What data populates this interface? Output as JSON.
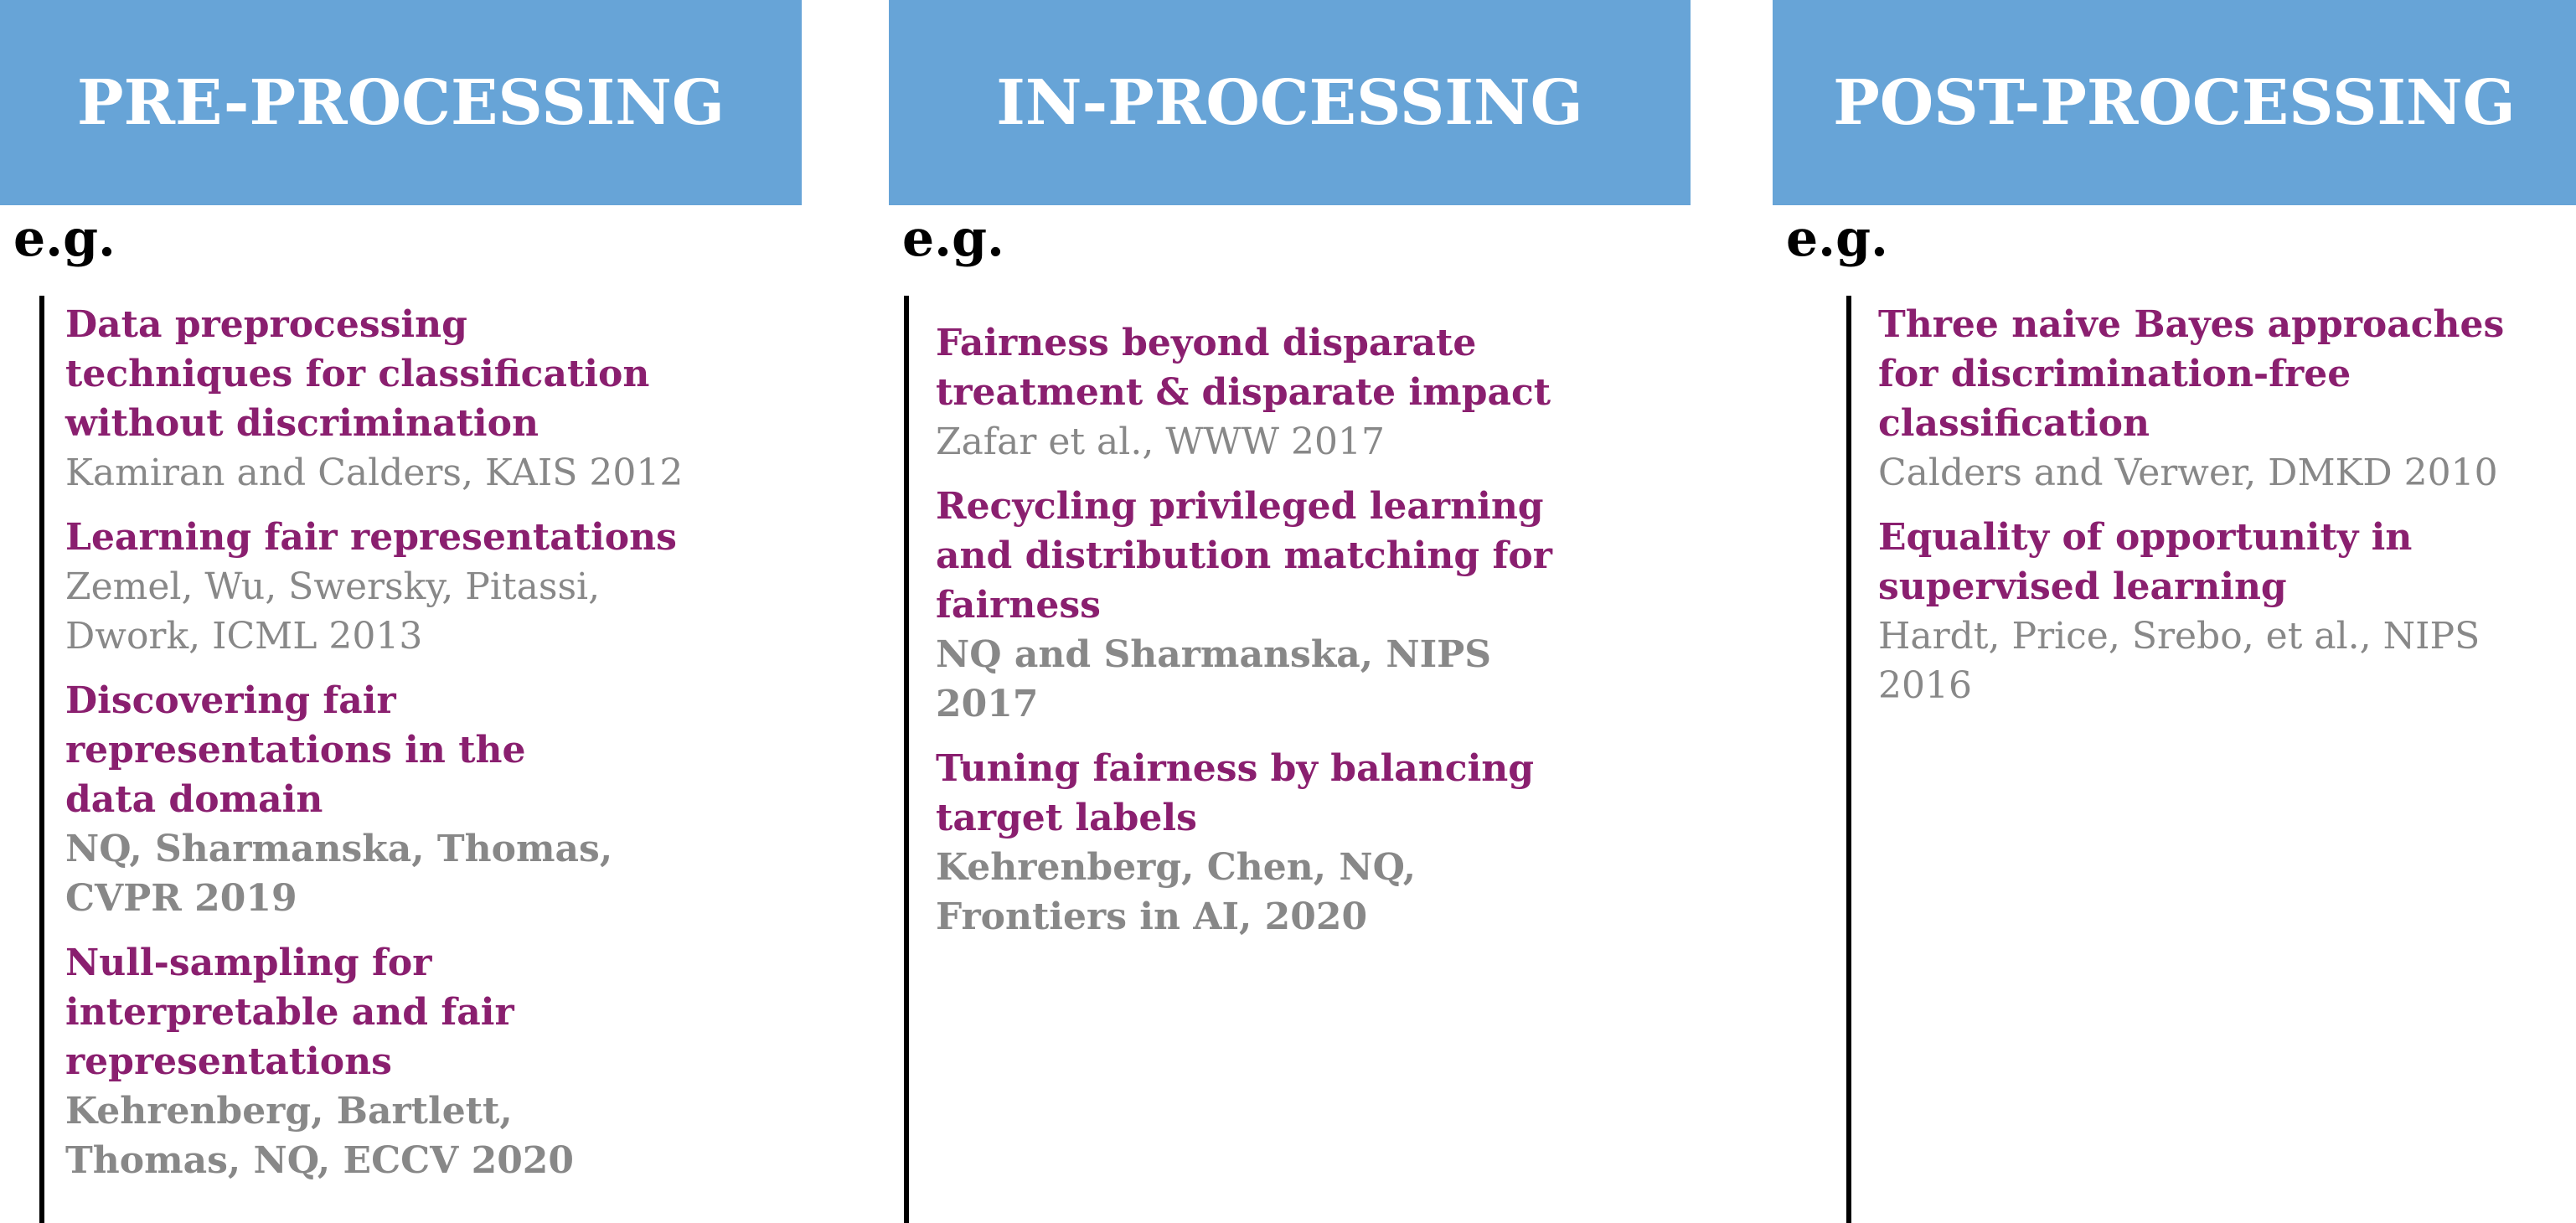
{
  "columns": [
    {
      "header": "PRE-PROCESSING",
      "eg": "e.g.",
      "entries": [
        {
          "title": [
            "Data preprocessing",
            "techniques for classification",
            "without discrimination"
          ],
          "authors": [
            "Kamiran and Calders, KAIS 2012"
          ]
        },
        {
          "title": [
            "Learning fair representations"
          ],
          "authors": [
            "Zemel, Wu, Swersky, Pitassi,",
            "Dwork, ICML 2013"
          ]
        },
        {
          "title": [
            "Discovering fair",
            "representations in the",
            "data domain"
          ],
          "authors": [
            "NQ, Sharmanska, Thomas,",
            "CVPR 2019"
          ],
          "authors_bold": true
        },
        {
          "title": [
            "Null-sampling for",
            "interpretable and fair",
            "representations"
          ],
          "authors": [
            "Kehrenberg, Bartlett,",
            "Thomas, NQ, ECCV 2020"
          ],
          "authors_bold": true
        }
      ]
    },
    {
      "header": "IN-PROCESSING",
      "eg": "e.g.",
      "entries": [
        {
          "title": [
            "Fairness beyond disparate",
            "treatment & disparate impact"
          ],
          "authors": [
            "Zafar et al., WWW 2017"
          ]
        },
        {
          "title": [
            "Recycling privileged learning",
            "and distribution matching for",
            "fairness"
          ],
          "authors": [
            "NQ and Sharmanska, NIPS",
            "2017"
          ],
          "authors_bold": true
        },
        {
          "title": [
            "Tuning fairness by balancing",
            "target labels"
          ],
          "authors": [
            "Kehrenberg, Chen, NQ,",
            "Frontiers in AI, 2020"
          ],
          "authors_bold": true
        }
      ]
    },
    {
      "header": "POST-PROCESSING",
      "eg": "e.g.",
      "entries": [
        {
          "title": [
            "Three naive Bayes approaches",
            "for discrimination-free",
            "classification"
          ],
          "authors": [
            "Calders and Verwer, DMKD 2010"
          ]
        },
        {
          "title": [
            "Equality of opportunity in",
            "supervised learning"
          ],
          "authors": [
            "Hardt, Price, Srebo, et al., NIPS",
            "2016"
          ]
        }
      ]
    }
  ]
}
